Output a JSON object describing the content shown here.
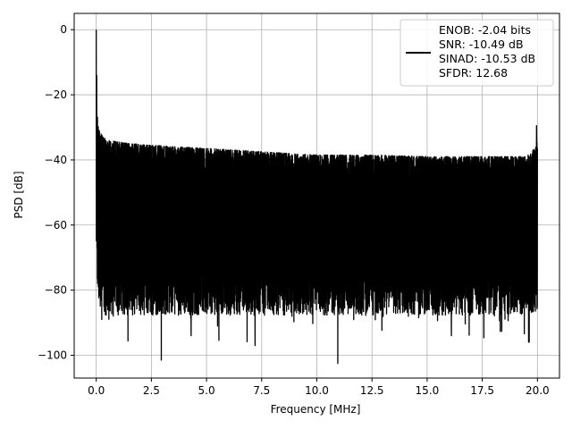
{
  "chart_data": {
    "type": "line",
    "title": "",
    "xlabel": "Frequency [MHz]",
    "ylabel": "PSD [dB]",
    "xlim": [
      -1.0,
      21.0
    ],
    "ylim": [
      -107.0,
      5.0
    ],
    "xticks": [
      0.0,
      2.5,
      5.0,
      7.5,
      10.0,
      12.5,
      15.0,
      17.5,
      20.0
    ],
    "xtick_labels": [
      "0.0",
      "2.5",
      "5.0",
      "7.5",
      "10.0",
      "12.5",
      "15.0",
      "17.5",
      "20.0"
    ],
    "yticks": [
      0,
      -20,
      -40,
      -60,
      -80,
      -100
    ],
    "ytick_labels": [
      "0",
      "−20",
      "−40",
      "−60",
      "−80",
      "−100"
    ],
    "grid": true,
    "legend_position": "top-right",
    "legend_entries": [
      "ENOB: -2.04 bits",
      "SNR: -10.49 dB",
      "SINAD: -10.53 dB",
      "SFDR: 12.68"
    ],
    "series": [
      {
        "color": "#000000",
        "x_range": [
          0.0,
          20.0
        ],
        "envelope": {
          "x": [
            0.0,
            0.04,
            0.08,
            0.15,
            0.3,
            0.6,
            1.0,
            1.5,
            2.5,
            5.0,
            7.5,
            10.0,
            12.5,
            15.0,
            17.5,
            19.5,
            19.95,
            20.0
          ],
          "upper": [
            0.0,
            -25.0,
            -29.0,
            -31.0,
            -33.0,
            -34.0,
            -34.5,
            -35.0,
            -35.5,
            -36.5,
            -37.5,
            -38.5,
            -38.5,
            -39.0,
            -39.0,
            -39.0,
            -36.0,
            -30.0
          ],
          "lower_typical": [
            -60.0,
            -70.0,
            -76.0,
            -78.0,
            -80.0,
            -80.0,
            -80.0,
            -80.0,
            -80.0,
            -80.0,
            -80.0,
            -80.0,
            -80.0,
            -80.0,
            -80.0,
            -80.0,
            -80.0,
            -78.0
          ]
        },
        "notable_points": [
          {
            "x": 0.0,
            "y": 0.0
          },
          {
            "x": 19.96,
            "y": -29.5
          },
          {
            "x": 2.95,
            "y": -101.5
          },
          {
            "x": 10.95,
            "y": -102.5
          },
          {
            "x": 7.2,
            "y": -97.0
          },
          {
            "x": 4.3,
            "y": -94.0
          },
          {
            "x": 19.6,
            "y": -96.0
          },
          {
            "x": 16.1,
            "y": -94.0
          },
          {
            "x": 0.25,
            "y": -89.0
          },
          {
            "x": 5.5,
            "y": -91.0
          }
        ]
      }
    ]
  }
}
